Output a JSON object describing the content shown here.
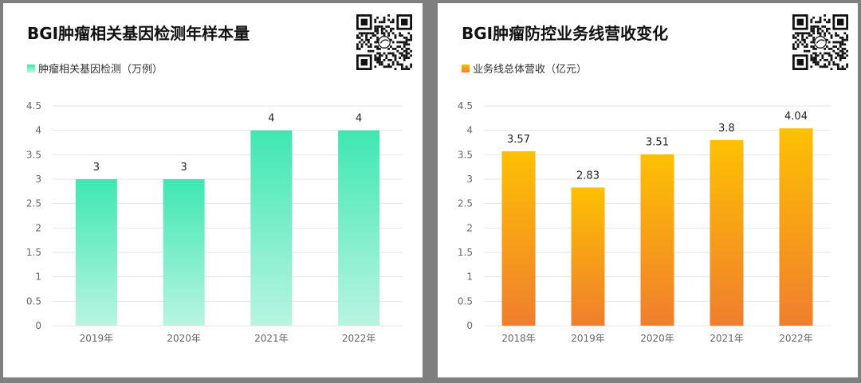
{
  "colors": {
    "background": "#7f7f7f",
    "panel": "#ffffff",
    "green_top": "#3fe7b1",
    "green_bottom": "#b9f4e1",
    "orange_top": "#fdc003",
    "orange_bottom": "#f07e2e",
    "gridline": "#e6e6e6",
    "axis_text": "#666666"
  },
  "icons": [
    "qr-code-icon"
  ],
  "chart_data": [
    {
      "type": "bar",
      "title": "BGI肿瘤相关基因检测年样本量",
      "legend_position": "top-left",
      "grid": true,
      "categories": [
        "2019年",
        "2020年",
        "2021年",
        "2022年"
      ],
      "series": [
        {
          "name": "肿瘤相关基因检测（万例）",
          "values": [
            3,
            3,
            4,
            4
          ],
          "labels": [
            "3",
            "3",
            "4",
            "4"
          ]
        }
      ],
      "yticks": [
        "0",
        "0.5",
        "1",
        "1.5",
        "2",
        "2.5",
        "3",
        "3.5",
        "4",
        "4.5"
      ],
      "ylim": [
        0,
        4.5
      ],
      "xlabel": "",
      "ylabel": ""
    },
    {
      "type": "bar",
      "title": "BGI肿瘤防控业务线营收变化",
      "legend_position": "top-left",
      "grid": true,
      "categories": [
        "2018年",
        "2019年",
        "2020年",
        "2021年",
        "2022年"
      ],
      "series": [
        {
          "name": "业务线总体营收（亿元）",
          "values": [
            3.57,
            2.83,
            3.51,
            3.8,
            4.04
          ],
          "labels": [
            "3.57",
            "2.83",
            "3.51",
            "3.8",
            "4.04"
          ]
        }
      ],
      "yticks": [
        "0",
        "0.5",
        "1",
        "1.5",
        "2",
        "2.5",
        "3",
        "3.5",
        "4",
        "4.5"
      ],
      "ylim": [
        0,
        4.5
      ],
      "xlabel": "",
      "ylabel": ""
    }
  ]
}
